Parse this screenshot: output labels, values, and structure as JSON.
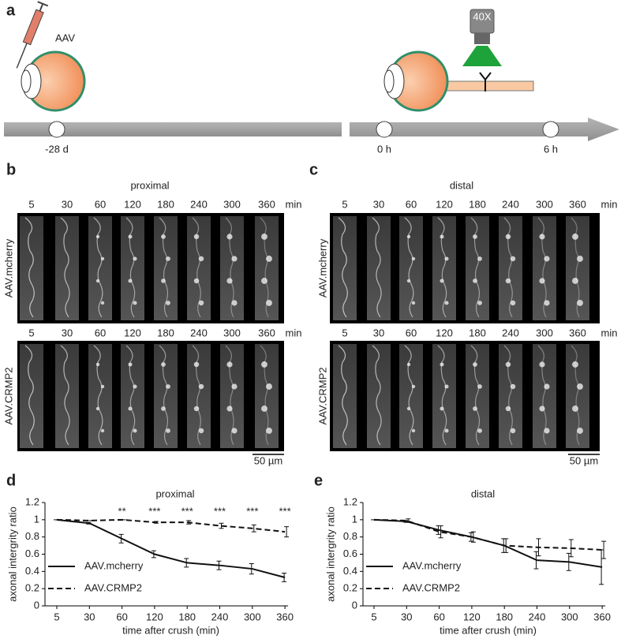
{
  "schematic": {
    "label": "a",
    "injection": "AAV",
    "objective": "40X",
    "timeline": [
      "-28 d",
      "0 h",
      "6 h"
    ]
  },
  "microscopy": [
    {
      "label": "b",
      "title": "proximal",
      "times": [
        5,
        30,
        60,
        120,
        180,
        240,
        300,
        360
      ],
      "unit": "min",
      "rows": [
        "AAV.mcherry",
        "AAV.CRMP2"
      ],
      "scale_bar": "50 µm"
    },
    {
      "label": "c",
      "title": "distal",
      "times": [
        5,
        30,
        60,
        120,
        180,
        240,
        300,
        360
      ],
      "unit": "min",
      "rows": [
        "AAV.mcherry",
        "AAV.CRMP2"
      ],
      "scale_bar": "50 µm"
    }
  ],
  "chart_data": [
    {
      "type": "line",
      "panel_label": "d",
      "title": "proximal",
      "xlabel": "time after crush (min)",
      "ylabel": "axonal intergrity ratio",
      "categories": [
        "5",
        "30",
        "60",
        "120",
        "180",
        "240",
        "300",
        "360"
      ],
      "ylim": [
        0,
        1.2
      ],
      "yticks": [
        0,
        0.2,
        0.4,
        0.6,
        0.8,
        1,
        1.2
      ],
      "legend": "lower left",
      "significance": [
        null,
        null,
        "**",
        "***",
        "***",
        "***",
        "***",
        "***"
      ],
      "series": [
        {
          "name": "AAV.mcherry",
          "color": "#111111",
          "dashed": false,
          "values": [
            1,
            0.96,
            0.78,
            0.6,
            0.5,
            0.47,
            0.43,
            0.33
          ],
          "errors": [
            0,
            0.01,
            0.05,
            0.04,
            0.05,
            0.05,
            0.06,
            0.05
          ]
        },
        {
          "name": "AAV.CRMP2",
          "color": "#111111",
          "dashed": true,
          "values": [
            1,
            0.99,
            1.0,
            0.97,
            0.97,
            0.93,
            0.9,
            0.86
          ],
          "errors": [
            0,
            0,
            0,
            0.01,
            0.02,
            0.03,
            0.04,
            0.06
          ]
        }
      ]
    },
    {
      "type": "line",
      "panel_label": "e",
      "title": "distal",
      "xlabel": "time after crush (min)",
      "ylabel": "axonal intergrity ratio",
      "categories": [
        "5",
        "30",
        "60",
        "120",
        "180",
        "240",
        "300",
        "360"
      ],
      "ylim": [
        0,
        1.2
      ],
      "yticks": [
        0,
        0.2,
        0.4,
        0.6,
        0.8,
        1,
        1.2
      ],
      "legend": "lower left",
      "series": [
        {
          "name": "AAV.mcherry",
          "color": "#111111",
          "dashed": false,
          "values": [
            1,
            0.98,
            0.88,
            0.8,
            0.7,
            0.53,
            0.51,
            0.45
          ],
          "errors": [
            0,
            0.01,
            0.05,
            0.05,
            0.08,
            0.1,
            0.1,
            0.2
          ]
        },
        {
          "name": "AAV.CRMP2",
          "color": "#111111",
          "dashed": true,
          "values": [
            1,
            0.99,
            0.86,
            0.8,
            0.7,
            0.68,
            0.67,
            0.65
          ],
          "errors": [
            0,
            0.02,
            0.07,
            0.06,
            0.08,
            0.1,
            0.1,
            0.1
          ]
        }
      ]
    }
  ]
}
